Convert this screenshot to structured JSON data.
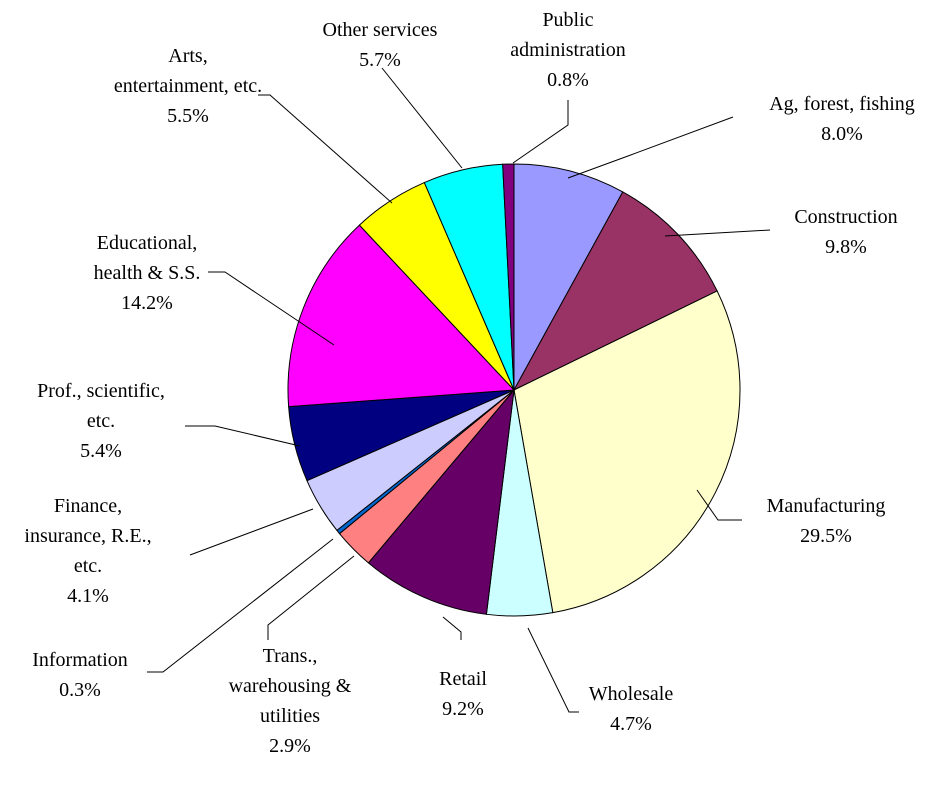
{
  "chart_data": {
    "type": "pie",
    "title": "",
    "slices": [
      {
        "label": [
          "Ag, forest, fishing"
        ],
        "pct": "8.0%",
        "value": 8.0,
        "color": "#9999FF"
      },
      {
        "label": [
          "Construction"
        ],
        "pct": "9.8%",
        "value": 9.8,
        "color": "#993366"
      },
      {
        "label": [
          "Manufacturing"
        ],
        "pct": "29.5%",
        "value": 29.5,
        "color": "#FFFFCC"
      },
      {
        "label": [
          "Wholesale"
        ],
        "pct": "4.7%",
        "value": 4.7,
        "color": "#CCFFFF"
      },
      {
        "label": [
          "Retail"
        ],
        "pct": "9.2%",
        "value": 9.2,
        "color": "#660066"
      },
      {
        "label": [
          "Trans.,",
          "warehousing &",
          "utilities"
        ],
        "pct": "2.9%",
        "value": 2.9,
        "color": "#FF8080"
      },
      {
        "label": [
          "Information"
        ],
        "pct": "0.3%",
        "value": 0.3,
        "color": "#0066CC"
      },
      {
        "label": [
          "Finance,",
          "insurance, R.E.,",
          "etc."
        ],
        "pct": "4.1%",
        "value": 4.1,
        "color": "#CCCCFF"
      },
      {
        "label": [
          "Prof., scientific,",
          "etc."
        ],
        "pct": "5.4%",
        "value": 5.4,
        "color": "#000080"
      },
      {
        "label": [
          "Educational,",
          "health & S.S."
        ],
        "pct": "14.2%",
        "value": 14.2,
        "color": "#FF00FF"
      },
      {
        "label": [
          "Arts,",
          "entertainment, etc."
        ],
        "pct": "5.5%",
        "value": 5.5,
        "color": "#FFFF00"
      },
      {
        "label": [
          "Other services"
        ],
        "pct": "5.7%",
        "value": 5.7,
        "color": "#00FFFF"
      },
      {
        "label": [
          "Public",
          "administration"
        ],
        "pct": "0.8%",
        "value": 0.8,
        "color": "#800080"
      }
    ]
  }
}
